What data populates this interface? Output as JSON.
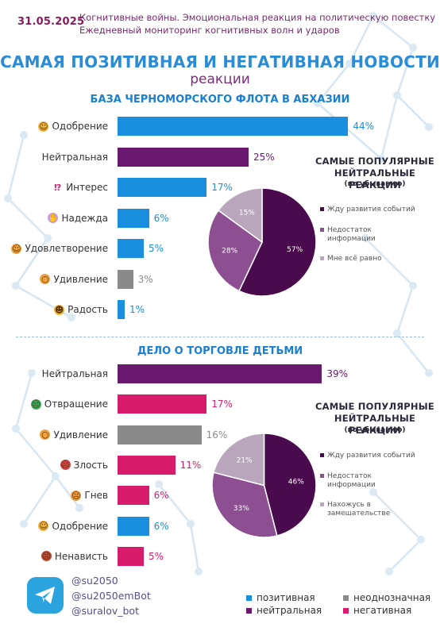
{
  "header": {
    "date": "31.05.2025",
    "line1": "Когнитивные войны. Эмоциональная реакция на политическую повестку",
    "line2": "Ежедневный мониторинг когнитивных волн и ударов"
  },
  "title": "САМАЯ ПОЗИТИВНАЯ И НЕГАТИВНАЯ НОВОСТИ",
  "subtitle": "реакции",
  "colors": {
    "positive": "#1a8fe0",
    "neutral": "#6a1a6e",
    "ambiguous": "#8a8a8a",
    "negative": "#d81b6a"
  },
  "chart_data": [
    {
      "type": "bar",
      "title": "БАЗА ЧЕРНОМОРСКОГО ФЛОТА В АБХАЗИИ",
      "categories": [
        "Одобрение",
        "Нейтральная",
        "Интерес",
        "Надежда",
        "Удовлетворение",
        "Удивление",
        "Радость"
      ],
      "values": [
        44,
        25,
        17,
        6,
        5,
        3,
        1
      ],
      "value_labels": [
        "44%",
        "25%",
        "17%",
        "6%",
        "5%",
        "3%",
        "1%"
      ],
      "kinds": [
        "positive",
        "neutral",
        "positive",
        "positive",
        "positive",
        "ambiguous",
        "positive"
      ],
      "icons": [
        "smile-emoji-icon",
        "",
        "interrobang-icon",
        "praying-hands-icon",
        "satisfied-emoji-icon",
        "surprised-emoji-icon",
        "joy-emoji-icon"
      ],
      "xlim": [
        0,
        45
      ]
    },
    {
      "type": "pie",
      "title_line1": "САМЫЕ ПОПУЛЯРНЫЕ",
      "title_line2": "НЕЙТРАЛЬНЫЕ РЕАКЦИИ",
      "subtitle": "(по убыванию)",
      "labels": [
        "Жду развития событий",
        "Недостаток информации",
        "Мне всё равно"
      ],
      "legend_lines": [
        [
          "Жду развития событий"
        ],
        [
          "Недостаток",
          "информации"
        ],
        [
          "Мне всё равно"
        ]
      ],
      "values": [
        57,
        28,
        15
      ],
      "value_labels": [
        "57%",
        "28%",
        "15%"
      ],
      "colors": [
        "#4a0a4e",
        "#8e4f92",
        "#b9a6bc"
      ]
    },
    {
      "type": "bar",
      "title": "ДЕЛО О ТОРГОВЛЕ ДЕТЬМИ",
      "categories": [
        "Нейтральная",
        "Отвращение",
        "Удивление",
        "Злость",
        "Гнев",
        "Одобрение",
        "Ненависть"
      ],
      "values": [
        39,
        17,
        16,
        11,
        6,
        6,
        5
      ],
      "value_labels": [
        "39%",
        "17%",
        "16%",
        "11%",
        "6%",
        "6%",
        "5%"
      ],
      "kinds": [
        "neutral",
        "negative",
        "ambiguous",
        "negative",
        "negative",
        "positive",
        "negative"
      ],
      "icons": [
        "",
        "disgust-emoji-icon",
        "surprised-emoji-icon",
        "angry-emoji-icon",
        "rage-emoji-icon",
        "smile-emoji-icon",
        "hate-emoji-icon"
      ],
      "xlim": [
        0,
        45
      ]
    },
    {
      "type": "pie",
      "title_line1": "САМЫЕ ПОПУЛЯРНЫЕ",
      "title_line2": "НЕЙТРАЛЬНЫЕ РЕАКЦИИ",
      "subtitle": "(по убыванию)",
      "labels": [
        "Жду развития событий",
        "Недостаток информации",
        "Нахожусь в замешательстве"
      ],
      "legend_lines": [
        [
          "Жду развития событий"
        ],
        [
          "Недостаток",
          "информации"
        ],
        [
          "Нахожусь в",
          "замешательстве"
        ]
      ],
      "values": [
        46,
        33,
        21
      ],
      "value_labels": [
        "46%",
        "33%",
        "21%"
      ],
      "colors": [
        "#4a0a4e",
        "#8e4f92",
        "#b9a6bc"
      ]
    }
  ],
  "footer": {
    "handles": [
      "@su2050",
      "@su2050emBot",
      "@suralov_bot"
    ],
    "legend": [
      {
        "label": "позитивная",
        "kind": "positive"
      },
      {
        "label": "неоднозначная",
        "kind": "ambiguous"
      },
      {
        "label": "нейтральная",
        "kind": "neutral"
      },
      {
        "label": "негативная",
        "kind": "negative"
      }
    ]
  }
}
